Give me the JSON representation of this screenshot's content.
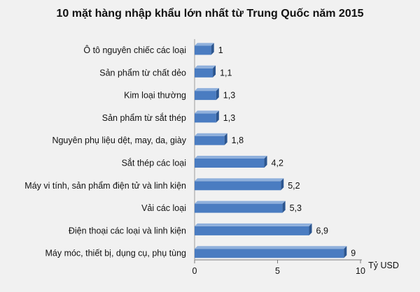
{
  "chart_data": {
    "type": "bar",
    "orientation": "horizontal",
    "title": "10 mặt hàng nhập khẩu lớn nhất từ Trung Quốc năm 2015",
    "categories": [
      "Ô tô nguyên chiếc các loại",
      "Sản phẩm từ chất dẻo",
      "Kim loại thường",
      "Sản phẩm từ sắt thép",
      "Nguyên  phụ liệu dệt, may, da, giày",
      "Sắt thép các loại",
      "Máy vi tính, sản phẩm điện tử và  linh kiện",
      "Vải các loại",
      "Điện thoại các loại và linh kiện",
      "Máy móc, thiết bị, dụng cụ, phụ tùng"
    ],
    "values": [
      1,
      1.1,
      1.3,
      1.3,
      1.8,
      4.2,
      5.2,
      5.3,
      6.9,
      9
    ],
    "value_labels": [
      "1",
      "1,1",
      "1,3",
      "1,3",
      "1,8",
      "4,2",
      "5,2",
      "5,3",
      "6,9",
      "9"
    ],
    "xlim": [
      0,
      10
    ],
    "xticks": [
      0,
      5,
      10
    ],
    "xtick_labels": [
      "0",
      "5",
      "10"
    ],
    "xlabel": "Tỷ USD",
    "bar_color": "#4a7cc1",
    "bar_top_color": "#8fb0dc",
    "bar_side_color": "#2c5690",
    "grid": false,
    "legend": "none"
  }
}
